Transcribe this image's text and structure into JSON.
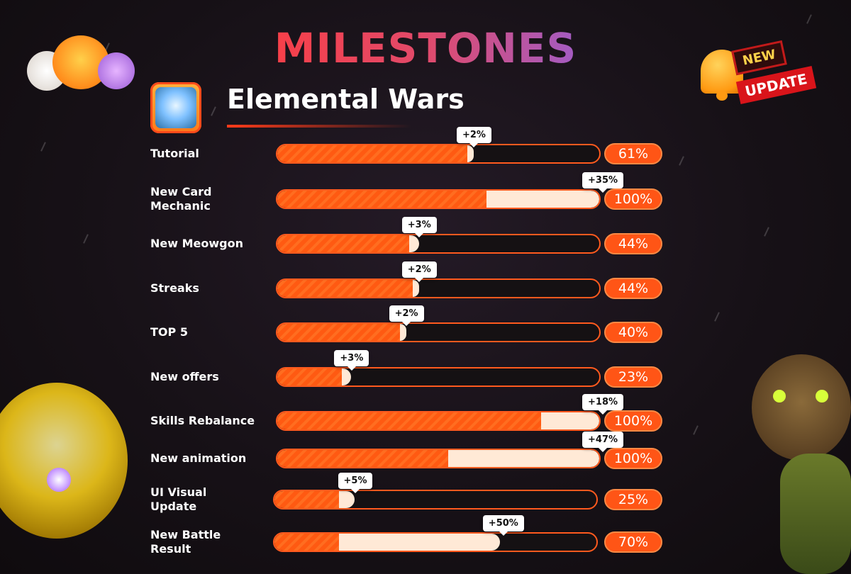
{
  "title": "MILESTONES",
  "game": {
    "name": "Elemental Wars"
  },
  "badge": {
    "line1": "NEW",
    "line2": "UPDATE"
  },
  "milestones": [
    {
      "label": "Tutorial",
      "percent": "61%",
      "delta": "+2%",
      "progress": 0.61,
      "increase": 0.02
    },
    {
      "label": "New Card Mechanic",
      "percent": "100%",
      "delta": "+35%",
      "progress": 1.0,
      "increase": 0.35
    },
    {
      "label": "New Meowgon",
      "percent": "44%",
      "delta": "+3%",
      "progress": 0.44,
      "increase": 0.03
    },
    {
      "label": "Streaks",
      "percent": "44%",
      "delta": "+2%",
      "progress": 0.44,
      "increase": 0.02
    },
    {
      "label": "TOP 5",
      "percent": "40%",
      "delta": "+2%",
      "progress": 0.4,
      "increase": 0.02
    },
    {
      "label": "New offers",
      "percent": "23%",
      "delta": "+3%",
      "progress": 0.23,
      "increase": 0.03
    },
    {
      "label": "Skills Rebalance",
      "percent": "100%",
      "delta": "+18%",
      "progress": 1.0,
      "increase": 0.18
    },
    {
      "label": "New animation",
      "percent": "100%",
      "delta": "+47%",
      "progress": 1.0,
      "increase": 0.47
    },
    {
      "label": "UI Visual Update",
      "percent": "25%",
      "delta": "+5%",
      "progress": 0.25,
      "increase": 0.05
    },
    {
      "label": "New Battle Result",
      "percent": "70%",
      "delta": "+50%",
      "progress": 0.7,
      "increase": 0.5
    }
  ]
}
